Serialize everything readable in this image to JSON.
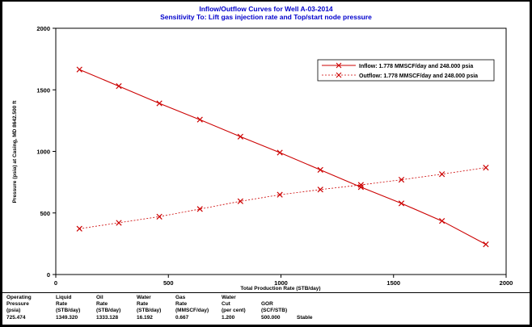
{
  "chart_data": {
    "type": "line",
    "title": "Inflow/Outflow Curves for Well A-03-2014",
    "subtitle": "Sensitivity To: Lift gas injection rate and Top/start node pressure",
    "xlabel": "Total Production Rate (STB/day)",
    "ylabel": "Pressure (psia) at Casing, MD 8642.500 ft",
    "xlim": [
      0,
      2000
    ],
    "ylim": [
      0,
      2000
    ],
    "xticks": [
      "0",
      "500",
      "1000",
      "1500",
      "2000"
    ],
    "yticks": [
      "0",
      "500",
      "1000",
      "1500",
      "2000"
    ],
    "grid": false,
    "legend_position": "top-right",
    "series": [
      {
        "name": "Inflow: 1.778 MMSCF/day and 248.000 psia",
        "color": "#cc0000",
        "style": "solid",
        "marker": "x",
        "x": [
          105,
          280,
          460,
          640,
          820,
          995,
          1175,
          1355,
          1535,
          1715,
          1910
        ],
        "y": [
          1665,
          1530,
          1390,
          1258,
          1120,
          990,
          850,
          710,
          578,
          435,
          245
        ]
      },
      {
        "name": "Outflow: 1.778 MMSCF/day and 248.000 psia",
        "color": "#cc0000",
        "style": "dashed",
        "marker": "x",
        "x": [
          105,
          280,
          460,
          640,
          820,
          995,
          1175,
          1355,
          1535,
          1715,
          1910
        ],
        "y": [
          372,
          420,
          470,
          532,
          595,
          648,
          690,
          728,
          770,
          815,
          868
        ]
      }
    ]
  },
  "table": {
    "columns": [
      {
        "header": [
          "Operating",
          "Pressure",
          "(psia)"
        ],
        "value": "725.474"
      },
      {
        "header": [
          "Liquid",
          "Rate",
          "(STB/day)"
        ],
        "value": "1349.320"
      },
      {
        "header": [
          "Oil",
          "Rate",
          "(STB/day)"
        ],
        "value": "1333.128"
      },
      {
        "header": [
          "Water",
          "Rate",
          "(STB/day)"
        ],
        "value": "16.192"
      },
      {
        "header": [
          "Gas",
          "Rate",
          "(MMSCF/day)"
        ],
        "value": "0.667"
      },
      {
        "header": [
          "Water",
          "Cut",
          "(per cent)"
        ],
        "value": "1.200"
      },
      {
        "header": [
          "",
          "GOR",
          "(SCF/STB)"
        ],
        "value": "500.000"
      },
      {
        "header": [
          "",
          "",
          ""
        ],
        "value": "Stable"
      }
    ]
  }
}
